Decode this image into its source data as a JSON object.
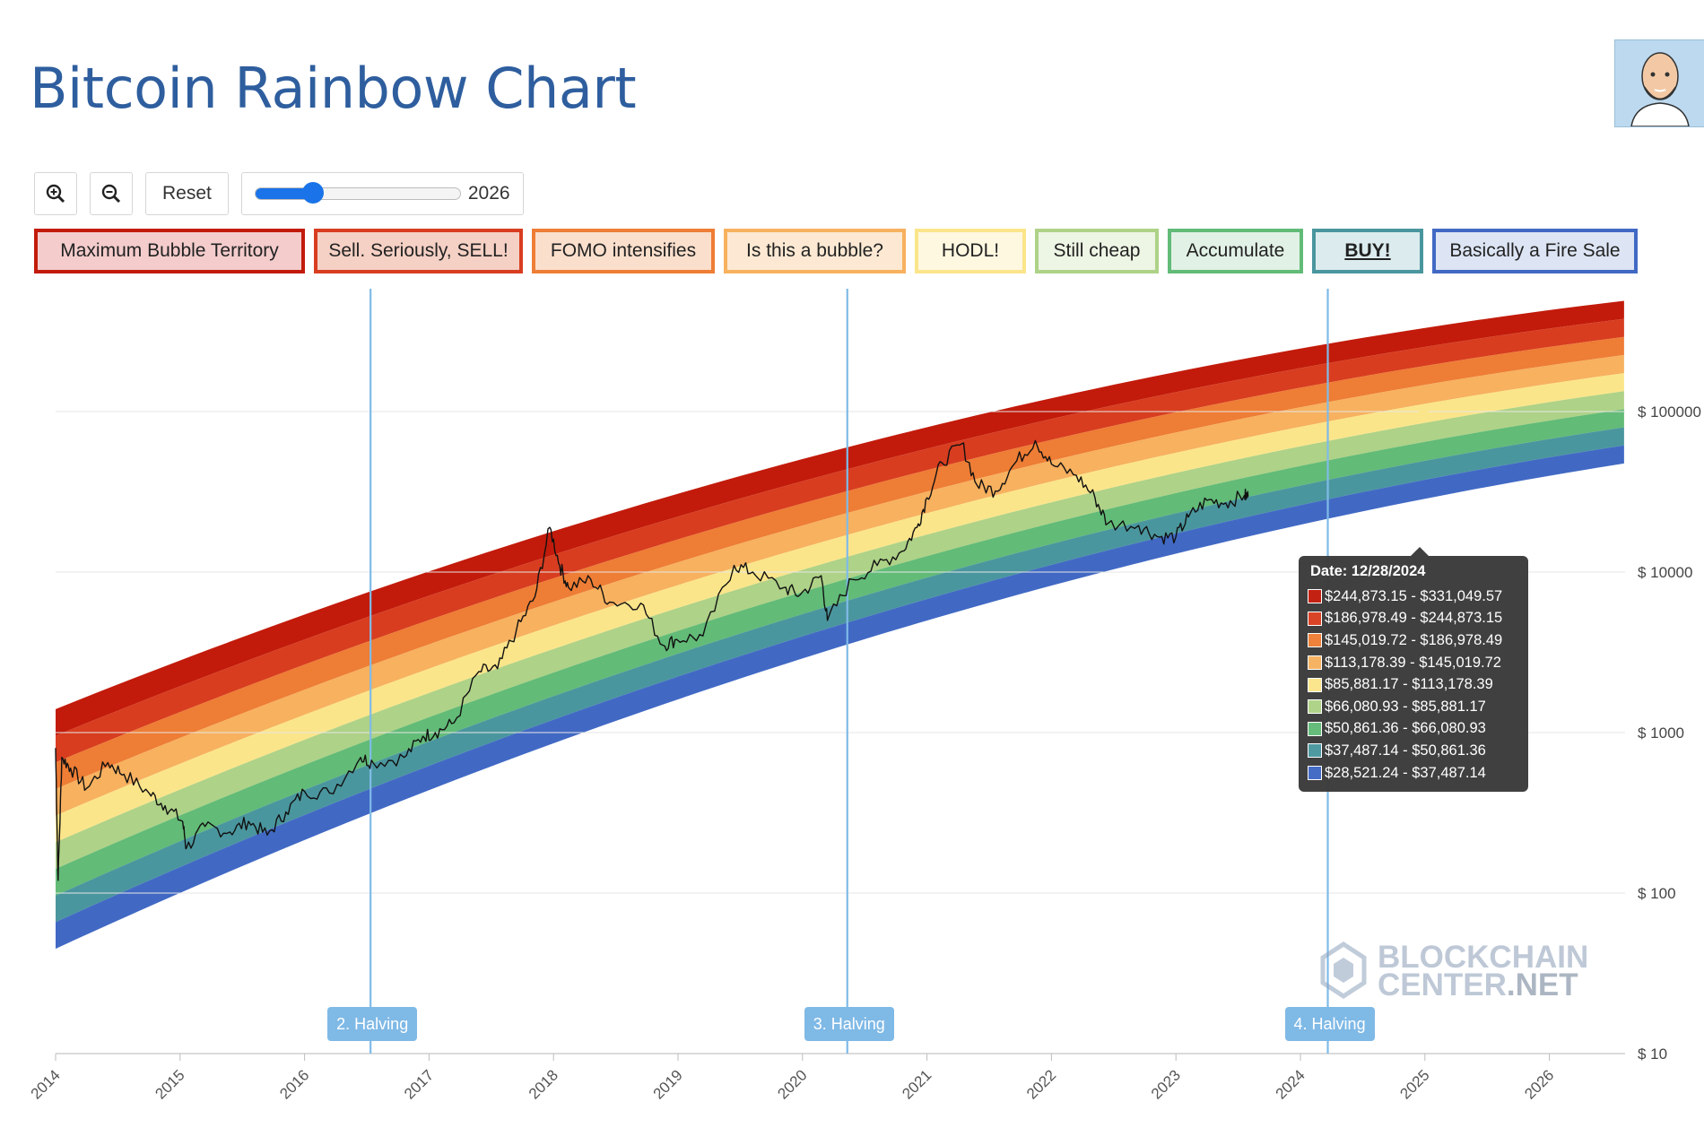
{
  "header": {
    "title": "Bitcoin Rainbow Chart"
  },
  "toolbar": {
    "zoom_in_icon": "zoom-in-icon",
    "zoom_out_icon": "zoom-out-icon",
    "reset_label": "Reset",
    "year_slider_value": "2026",
    "year_slider_min": 2014,
    "year_slider_max": 2040
  },
  "bands": [
    {
      "label": "Maximum Bubble Territory",
      "color": "#c21b0b",
      "fill": "#f4cccc"
    },
    {
      "label": "Sell. Seriously, SELL!",
      "color": "#d83d20",
      "fill": "#f5d0c4"
    },
    {
      "label": "FOMO intensifies",
      "color": "#ee7d35",
      "fill": "#fadfcc"
    },
    {
      "label": "Is this a bubble?",
      "color": "#f7b15f",
      "fill": "#fde9d3"
    },
    {
      "label": "HODL!",
      "color": "#fbe58a",
      "fill": "#fef8e1"
    },
    {
      "label": "Still cheap",
      "color": "#aed287",
      "fill": "#edf5e4"
    },
    {
      "label": "Accumulate",
      "color": "#62bb77",
      "fill": "#e1f1e5"
    },
    {
      "label": "BUY!",
      "color": "#4a969e",
      "fill": "#dcecee"
    },
    {
      "label": "Basically a Fire Sale",
      "color": "#4169c4",
      "fill": "#dde5f5"
    }
  ],
  "tooltip": {
    "date": "Date: 12/28/2024",
    "ranges": [
      "$244,873.15 - $331,049.57",
      "$186,978.49 - $244,873.15",
      "$145,019.72 - $186,978.49",
      "$113,178.39 - $145,019.72",
      "$85,881.17 - $113,178.39",
      "$66,080.93 - $85,881.17",
      "$50,861.36 - $66,080.93",
      "$37,487.14 - $50,861.36",
      "$28,521.24 - $37,487.14"
    ]
  },
  "halvings": [
    {
      "label": "2. Halving",
      "date": 2016.53
    },
    {
      "label": "3. Halving",
      "date": 2020.36
    },
    {
      "label": "4. Halving",
      "date": 2024.22
    }
  ],
  "watermark": {
    "line1": "BLOCKCHAIN",
    "line2a": "CENTER",
    "line2b": ".NET"
  },
  "chart_data": {
    "type": "area",
    "title": "Bitcoin Rainbow Chart",
    "y_scale": "log",
    "ylim": [
      10,
      500000
    ],
    "xlim": [
      2014.0,
      2026.7
    ],
    "y_ticks": [
      {
        "value": 100000,
        "label": "$ 100000"
      },
      {
        "value": 10000,
        "label": "$ 10000"
      },
      {
        "value": 1000,
        "label": "$ 1000"
      },
      {
        "value": 100,
        "label": "$ 100"
      },
      {
        "value": 10,
        "label": "$ 10"
      }
    ],
    "x_ticks": [
      "2014",
      "2015",
      "2016",
      "2017",
      "2018",
      "2019",
      "2020",
      "2021",
      "2022",
      "2023",
      "2024",
      "2025",
      "2026"
    ],
    "grid": true,
    "band_edges": {
      "note": "edges of the nine colour bands (top of Maximum Bubble Territory down to bottom of Basically a Fire Sale)",
      "x": [
        2014.0,
        2024.99,
        2026.6
      ],
      "top": [
        1400,
        331049.57,
        490000
      ],
      "bottom": [
        45,
        28521.24,
        47500
      ]
    },
    "series": [
      {
        "name": "BTC price",
        "points": [
          [
            2014.0,
            800
          ],
          [
            2014.02,
            120
          ],
          [
            2014.05,
            700
          ],
          [
            2014.12,
            600
          ],
          [
            2014.25,
            450
          ],
          [
            2014.42,
            650
          ],
          [
            2014.55,
            550
          ],
          [
            2014.75,
            420
          ],
          [
            2014.88,
            350
          ],
          [
            2015.02,
            280
          ],
          [
            2015.05,
            190
          ],
          [
            2015.2,
            260
          ],
          [
            2015.4,
            240
          ],
          [
            2015.55,
            280
          ],
          [
            2015.7,
            230
          ],
          [
            2015.85,
            320
          ],
          [
            2016.0,
            430
          ],
          [
            2016.2,
            420
          ],
          [
            2016.45,
            700
          ],
          [
            2016.55,
            650
          ],
          [
            2016.8,
            700
          ],
          [
            2016.95,
            950
          ],
          [
            2017.05,
            1000
          ],
          [
            2017.2,
            1150
          ],
          [
            2017.4,
            2400
          ],
          [
            2017.55,
            2500
          ],
          [
            2017.7,
            4300
          ],
          [
            2017.85,
            7000
          ],
          [
            2017.97,
            19000
          ],
          [
            2018.05,
            11000
          ],
          [
            2018.12,
            8000
          ],
          [
            2018.3,
            9000
          ],
          [
            2018.45,
            6500
          ],
          [
            2018.7,
            6400
          ],
          [
            2018.88,
            3500
          ],
          [
            2018.99,
            3800
          ],
          [
            2019.2,
            4000
          ],
          [
            2019.45,
            11000
          ],
          [
            2019.6,
            10000
          ],
          [
            2019.85,
            8000
          ],
          [
            2019.98,
            7200
          ],
          [
            2020.15,
            9500
          ],
          [
            2020.2,
            5000
          ],
          [
            2020.4,
            9000
          ],
          [
            2020.6,
            11000
          ],
          [
            2020.8,
            13500
          ],
          [
            2020.92,
            19000
          ],
          [
            2021.0,
            29000
          ],
          [
            2021.12,
            48000
          ],
          [
            2021.28,
            63000
          ],
          [
            2021.4,
            35000
          ],
          [
            2021.55,
            32000
          ],
          [
            2021.7,
            47000
          ],
          [
            2021.87,
            66000
          ],
          [
            2022.0,
            47000
          ],
          [
            2022.2,
            40000
          ],
          [
            2022.35,
            29000
          ],
          [
            2022.45,
            20000
          ],
          [
            2022.7,
            19500
          ],
          [
            2022.87,
            16500
          ],
          [
            2023.0,
            16600
          ],
          [
            2023.1,
            22000
          ],
          [
            2023.25,
            28000
          ],
          [
            2023.4,
            27000
          ],
          [
            2023.55,
            30000
          ],
          [
            2023.58,
            29500
          ]
        ]
      }
    ]
  }
}
